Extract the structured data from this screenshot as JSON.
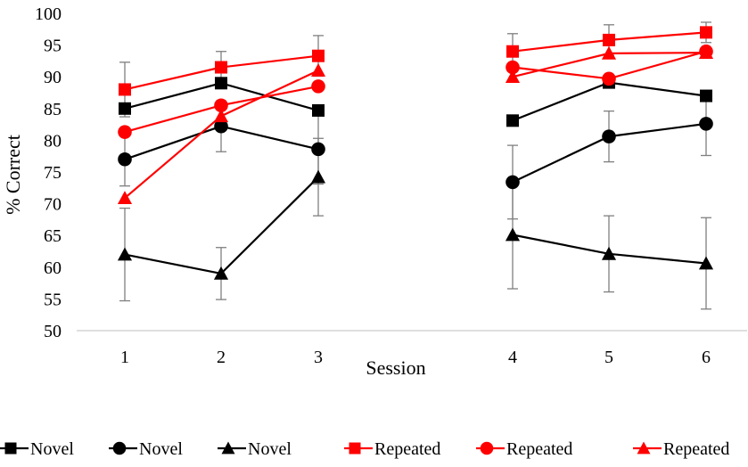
{
  "chart_data": {
    "type": "line",
    "title": "",
    "xlabel": "Session",
    "ylabel": "% Correct",
    "ylim": [
      50,
      100
    ],
    "yticks": [
      50,
      55,
      60,
      65,
      70,
      75,
      80,
      85,
      90,
      95,
      100
    ],
    "categories": [
      "1",
      "2",
      "3",
      "4",
      "5",
      "6"
    ],
    "x_groups": [
      [
        "1",
        "2",
        "3"
      ],
      [
        "4",
        "5",
        "6"
      ]
    ],
    "grid": false,
    "legend_position": "bottom",
    "series": [
      {
        "name": "Novel",
        "color": "#000000",
        "marker": "square",
        "values": [
          85.0,
          89.0,
          84.7,
          83.1,
          89.1,
          87.0
        ],
        "error": [
          0,
          0,
          0,
          0,
          0,
          0
        ]
      },
      {
        "name": "Novel",
        "color": "#000000",
        "marker": "circle",
        "values": [
          77.0,
          82.2,
          78.6,
          73.4,
          80.6,
          82.6
        ],
        "error": [
          4.2,
          4.0,
          5.5,
          5.8,
          4.0,
          5.0
        ]
      },
      {
        "name": "Novel",
        "color": "#000000",
        "marker": "triangle",
        "values": [
          62.0,
          59.0,
          74.2,
          65.1,
          62.1,
          60.6
        ],
        "error": [
          7.3,
          4.1,
          6.1,
          8.5,
          6.0,
          7.2
        ]
      },
      {
        "name": "Repeated",
        "color": "#ff0000",
        "marker": "square",
        "values": [
          88.0,
          91.5,
          93.3,
          94.0,
          95.8,
          97.0
        ],
        "error": [
          4.3,
          2.5,
          3.2,
          2.8,
          2.4,
          1.6
        ]
      },
      {
        "name": "Repeated",
        "color": "#ff0000",
        "marker": "circle",
        "values": [
          81.3,
          85.5,
          88.5,
          91.5,
          89.7,
          94.0
        ],
        "error": [
          0,
          0,
          0,
          0,
          0,
          0
        ]
      },
      {
        "name": "Repeated",
        "color": "#ff0000",
        "marker": "triangle",
        "values": [
          70.9,
          83.8,
          91.0,
          90.0,
          93.7,
          93.8
        ],
        "error": [
          0,
          0,
          0,
          0,
          0,
          0
        ]
      }
    ]
  }
}
